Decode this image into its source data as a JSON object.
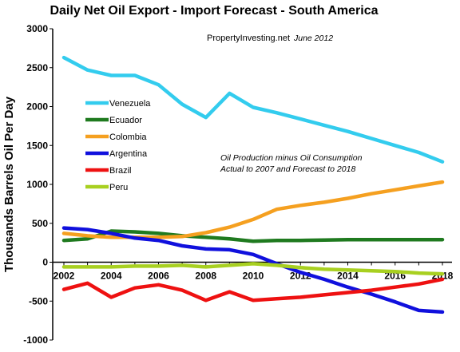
{
  "chart_data": {
    "type": "line",
    "title": "Daily Net Oil Export - Import Forecast - South America",
    "source_name": "PropertyInvesting.net",
    "source_date": "June 2012",
    "note_line1": "Oil Production minus Oil Consumption",
    "note_line2": "Actual to 2007 and Forecast to 2018",
    "ylabel": "Thousands Barrels Oil Per Day",
    "xlabel": "",
    "xlim": [
      2002,
      2018
    ],
    "ylim": [
      -1000,
      3000
    ],
    "x_ticks": [
      2002,
      2004,
      2006,
      2008,
      2010,
      2012,
      2014,
      2016,
      2018
    ],
    "y_ticks": [
      -1000,
      -500,
      0,
      500,
      1000,
      1500,
      2000,
      2500,
      3000
    ],
    "grid": false,
    "legend_position": "left",
    "series": [
      {
        "name": "Venezuela",
        "color": "#33ccee",
        "x": [
          2002,
          2003,
          2004,
          2005,
          2006,
          2007,
          2008,
          2009,
          2010,
          2011,
          2012,
          2013,
          2014,
          2015,
          2016,
          2017,
          2018
        ],
        "values": [
          2630,
          2470,
          2400,
          2400,
          2280,
          2030,
          1860,
          2170,
          1990,
          1920,
          1840,
          1760,
          1680,
          1590,
          1500,
          1410,
          1290
        ]
      },
      {
        "name": "Ecuador",
        "color": "#1f7a1f",
        "x": [
          2002,
          2003,
          2004,
          2005,
          2006,
          2007,
          2008,
          2009,
          2010,
          2011,
          2012,
          2013,
          2014,
          2015,
          2016,
          2017,
          2018
        ],
        "values": [
          280,
          300,
          400,
          390,
          370,
          340,
          320,
          300,
          270,
          280,
          280,
          285,
          290,
          290,
          290,
          290,
          290
        ]
      },
      {
        "name": "Colombia",
        "color": "#f5a020",
        "x": [
          2002,
          2003,
          2004,
          2005,
          2006,
          2007,
          2008,
          2009,
          2010,
          2011,
          2012,
          2013,
          2014,
          2015,
          2016,
          2017,
          2018
        ],
        "values": [
          370,
          340,
          320,
          320,
          320,
          330,
          380,
          450,
          550,
          680,
          730,
          770,
          820,
          880,
          930,
          980,
          1030
        ]
      },
      {
        "name": "Argentina",
        "color": "#1010dd",
        "x": [
          2002,
          2003,
          2004,
          2005,
          2006,
          2007,
          2008,
          2009,
          2010,
          2011,
          2012,
          2013,
          2014,
          2015,
          2016,
          2017,
          2018
        ],
        "values": [
          440,
          420,
          370,
          310,
          280,
          210,
          170,
          160,
          100,
          -20,
          -130,
          -220,
          -320,
          -410,
          -510,
          -620,
          -640
        ]
      },
      {
        "name": "Brazil",
        "color": "#ee1111",
        "x": [
          2002,
          2003,
          2004,
          2005,
          2006,
          2007,
          2008,
          2009,
          2010,
          2011,
          2012,
          2013,
          2014,
          2015,
          2016,
          2017,
          2018
        ],
        "values": [
          -350,
          -270,
          -450,
          -330,
          -290,
          -360,
          -490,
          -380,
          -490,
          -470,
          -450,
          -420,
          -390,
          -360,
          -320,
          -280,
          -220
        ]
      },
      {
        "name": "Peru",
        "color": "#a8d020",
        "x": [
          2002,
          2003,
          2004,
          2005,
          2006,
          2007,
          2008,
          2009,
          2010,
          2011,
          2012,
          2013,
          2014,
          2015,
          2016,
          2017,
          2018
        ],
        "values": [
          -60,
          -60,
          -60,
          -50,
          -50,
          -40,
          -60,
          -40,
          -20,
          -40,
          -70,
          -90,
          -100,
          -110,
          -120,
          -140,
          -150
        ]
      }
    ]
  }
}
